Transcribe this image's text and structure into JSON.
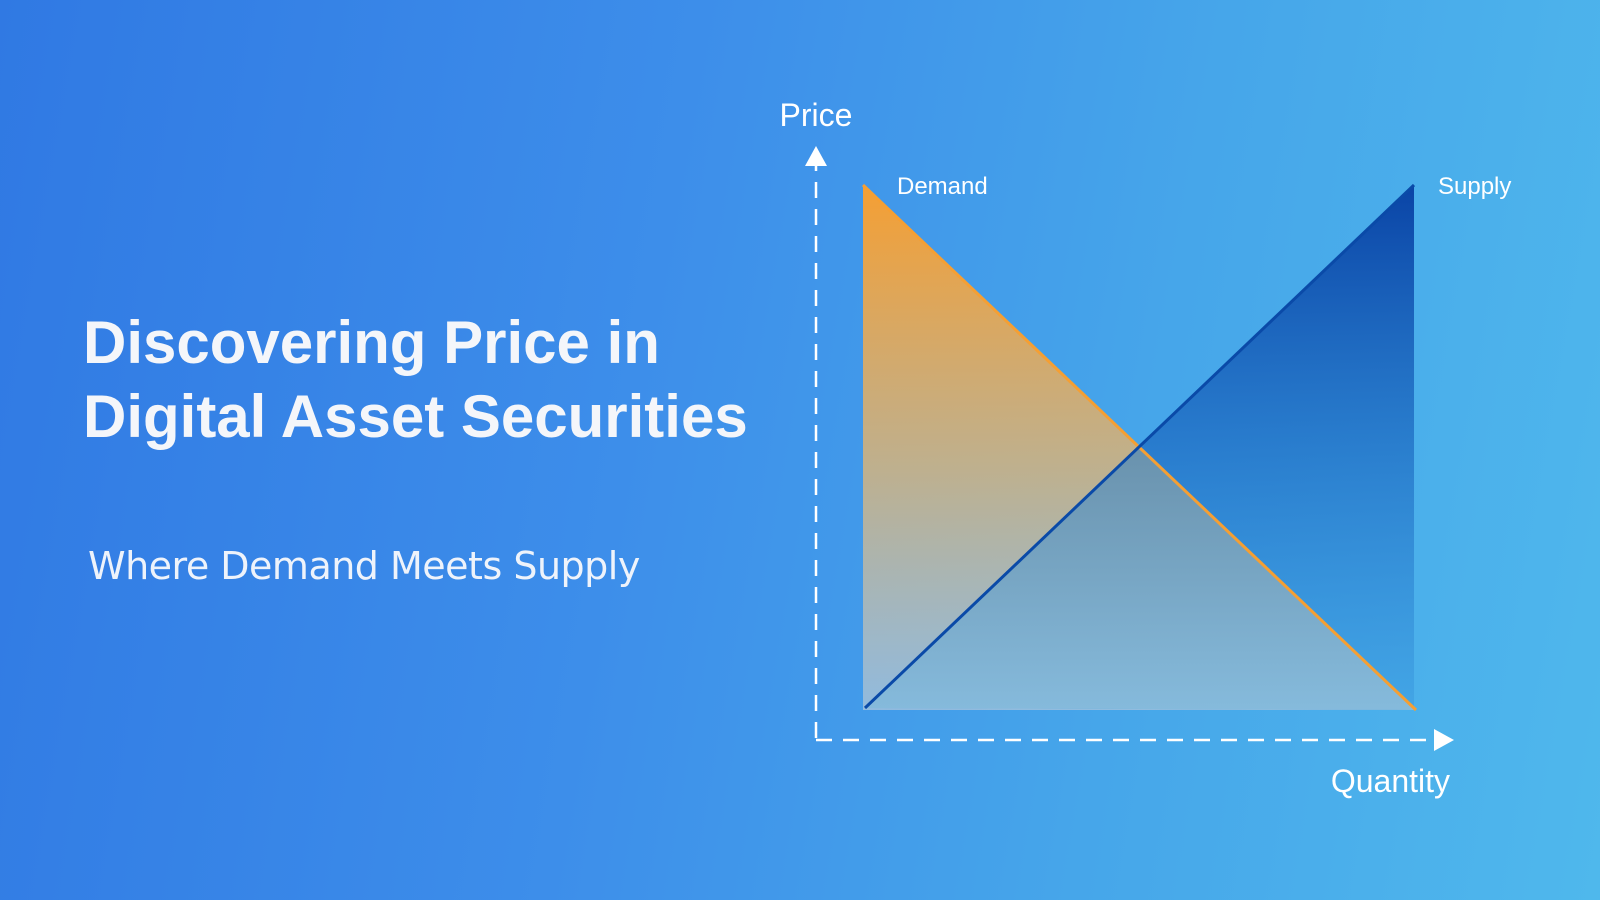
{
  "slide": {
    "title_line1": "Discovering Price in",
    "title_line2": "Digital Asset Securities",
    "subtitle": "Where Demand Meets Supply"
  },
  "diagram": {
    "y_axis_label": "Price",
    "x_axis_label": "Quantity",
    "demand_label": "Demand",
    "supply_label": "Supply"
  },
  "colors": {
    "background_start": "#3079e3",
    "background_end": "#4fb8ec",
    "demand_orange": "#f59f33",
    "supply_blue": "#0a4aa8",
    "axis_white": "#ffffff"
  }
}
